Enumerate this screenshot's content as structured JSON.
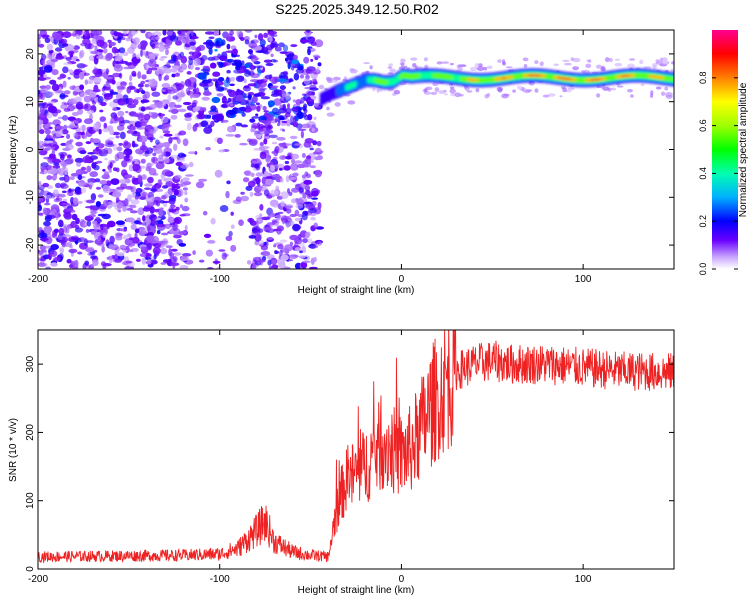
{
  "title": "S225.2025.349.12.50.R02",
  "chart_data": [
    {
      "type": "heatmap",
      "name": "spectrogram",
      "xlabel": "Height of straight line (km)",
      "ylabel": "Frequency (Hz)",
      "xlim": [
        -200,
        150
      ],
      "ylim": [
        -25,
        25
      ],
      "xticks": [
        -200,
        -100,
        0,
        100
      ],
      "yticks": [
        -20,
        -10,
        0,
        10,
        20
      ],
      "colorbar": {
        "label": "Normalized spectral amplitude",
        "range": [
          0.0,
          1.0
        ],
        "ticks": [
          "0.0",
          "0.2",
          "0.4",
          "0.6",
          "0.8"
        ],
        "tick_values": [
          0.0,
          0.2,
          0.4,
          0.6,
          0.8
        ]
      },
      "features": {
        "noise_region_x": [
          -200,
          -45
        ],
        "tone_line": {
          "x": [
            -45,
            -40,
            -35,
            -30,
            -25,
            -20,
            -15,
            -10,
            -5,
            0,
            5,
            10,
            20,
            40,
            60,
            80,
            100,
            120,
            150
          ],
          "freq": [
            10,
            11,
            12,
            13,
            14,
            15,
            15,
            14.5,
            14.5,
            15.5,
            15,
            15,
            15,
            15,
            15,
            15,
            15,
            15,
            15
          ],
          "amplitude": [
            0.15,
            0.2,
            0.3,
            0.35,
            0.4,
            0.45,
            0.5,
            0.55,
            0.6,
            0.65,
            0.6,
            0.6,
            0.6,
            0.7,
            0.85,
            0.9,
            0.9,
            0.85,
            0.7
          ]
        }
      }
    },
    {
      "type": "line",
      "name": "snr",
      "xlabel": "Height of straight line (km)",
      "ylabel": "SNR (10 * v/v)",
      "xlim": [
        -200,
        150
      ],
      "ylim": [
        0,
        350
      ],
      "xticks": [
        -200,
        -100,
        0,
        100
      ],
      "yticks": [
        0,
        100,
        200,
        300
      ],
      "color": "#ee2222",
      "trend": {
        "x": [
          -200,
          -120,
          -100,
          -90,
          -80,
          -75,
          -70,
          -60,
          -50,
          -40,
          -37,
          -33,
          -30,
          -25,
          -20,
          -15,
          -10,
          -5,
          0,
          5,
          10,
          15,
          20,
          25,
          30,
          40,
          50,
          60,
          80,
          100,
          120,
          150
        ],
        "y": [
          18,
          20,
          22,
          30,
          55,
          70,
          40,
          25,
          20,
          18,
          70,
          110,
          130,
          140,
          150,
          170,
          185,
          175,
          165,
          175,
          200,
          230,
          255,
          275,
          290,
          300,
          305,
          300,
          300,
          295,
          290,
          288
        ]
      }
    }
  ]
}
